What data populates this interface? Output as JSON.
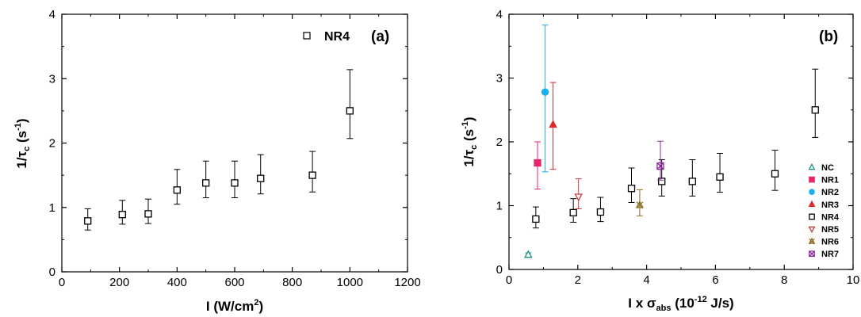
{
  "chart_data": [
    {
      "type": "scatter",
      "panel_label": "(a)",
      "xlabel": {
        "main": "I (W/cm",
        "sup": "2",
        "tail": ")"
      },
      "ylabel": {
        "main": "1/τ",
        "sub": "c",
        "mid": " (s",
        "sup": "-1",
        "tail": ")"
      },
      "xlim": [
        0,
        1200
      ],
      "ylim": [
        0,
        4
      ],
      "xticks": [
        "0",
        "200",
        "400",
        "600",
        "800",
        "1000",
        "1200"
      ],
      "yticks": [
        "0",
        "1",
        "2",
        "3",
        "4"
      ],
      "legend": {
        "placement": "top-right",
        "entries": [
          "NR4"
        ]
      },
      "series": [
        {
          "name": "NR4",
          "marker": "square-open",
          "color": "#000000",
          "x": [
            90,
            210,
            300,
            400,
            500,
            600,
            690,
            870,
            1000
          ],
          "y": [
            0.79,
            0.89,
            0.9,
            1.27,
            1.38,
            1.38,
            1.45,
            1.5,
            2.5
          ],
          "err_low": [
            0.65,
            0.74,
            0.75,
            1.05,
            1.15,
            1.15,
            1.21,
            1.24,
            2.07
          ],
          "err_high": [
            0.98,
            1.11,
            1.13,
            1.59,
            1.72,
            1.72,
            1.82,
            1.87,
            3.14
          ]
        }
      ]
    },
    {
      "type": "scatter",
      "panel_label": "(b)",
      "xlabel": {
        "main": "I x σ",
        "sub": "abs",
        "mid": " (10",
        "sup": "-12",
        "tail": " J/s)"
      },
      "ylabel": {
        "main": "1/τ",
        "sub": "c",
        "mid": " (s",
        "sup": "-1",
        "tail": ")"
      },
      "xlim": [
        0,
        10
      ],
      "ylim": [
        0,
        4
      ],
      "xticks": [
        "0",
        "2",
        "4",
        "6",
        "8",
        "10"
      ],
      "yticks": [
        "0",
        "1",
        "2",
        "3",
        "4"
      ],
      "legend": {
        "placement": "lower-right",
        "entries": [
          "NC",
          "NR1",
          "NR2",
          "NR3",
          "NR4",
          "NR5",
          "NR6",
          "NR7"
        ]
      },
      "series": [
        {
          "name": "NC",
          "marker": "triangle-open",
          "color": "#1a9080",
          "x": [
            0.56
          ],
          "y": [
            0.23
          ],
          "err_low": [
            0.21
          ],
          "err_high": [
            0.26
          ]
        },
        {
          "name": "NR1",
          "marker": "square-filled",
          "color": "#e8246a",
          "x": [
            0.83
          ],
          "y": [
            1.67
          ],
          "err_low": [
            1.26
          ],
          "err_high": [
            2.0
          ]
        },
        {
          "name": "NR2",
          "marker": "circle-filled",
          "color": "#18b0e8",
          "x": [
            1.05
          ],
          "y": [
            2.78
          ],
          "err_low": [
            1.53
          ],
          "err_high": [
            3.83
          ]
        },
        {
          "name": "NR3",
          "marker": "triangle-filled",
          "color": "#e02830",
          "x": [
            1.28
          ],
          "y": [
            2.27
          ],
          "err_low": [
            1.57
          ],
          "err_high": [
            2.93
          ]
        },
        {
          "name": "NR4",
          "marker": "square-open",
          "color": "#000000",
          "x": [
            0.78,
            1.87,
            2.66,
            3.56,
            4.44,
            5.33,
            6.13,
            7.73,
            8.9
          ],
          "y": [
            0.79,
            0.89,
            0.9,
            1.27,
            1.38,
            1.38,
            1.45,
            1.5,
            2.5
          ],
          "err_low": [
            0.65,
            0.74,
            0.75,
            1.05,
            1.15,
            1.15,
            1.21,
            1.24,
            2.07
          ],
          "err_high": [
            0.98,
            1.11,
            1.13,
            1.59,
            1.72,
            1.72,
            1.82,
            1.87,
            3.14
          ]
        },
        {
          "name": "NR5",
          "marker": "triangle-down-open",
          "color": "#c83a3a",
          "x": [
            2.02
          ],
          "y": [
            1.14
          ],
          "err_low": [
            0.95
          ],
          "err_high": [
            1.42
          ]
        },
        {
          "name": "NR6",
          "marker": "xtri",
          "color": "#8a7020",
          "x": [
            3.8
          ],
          "y": [
            1.01
          ],
          "err_low": [
            0.84
          ],
          "err_high": [
            1.25
          ]
        },
        {
          "name": "NR7",
          "marker": "xsquare",
          "color": "#8a2a9a",
          "x": [
            4.4
          ],
          "y": [
            1.62
          ],
          "err_low": [
            1.4
          ],
          "err_high": [
            2.01
          ]
        }
      ]
    }
  ]
}
